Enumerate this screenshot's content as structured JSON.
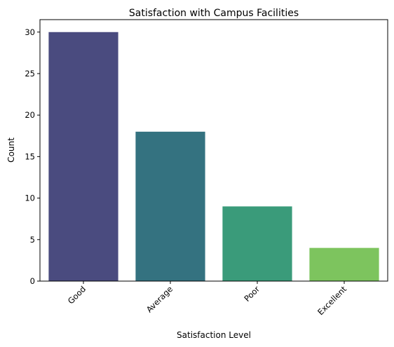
{
  "chart_data": {
    "type": "bar",
    "title": "Satisfaction with Campus Facilities",
    "xlabel": "Satisfaction Level",
    "ylabel": "Count",
    "categories": [
      "Good",
      "Average",
      "Poor",
      "Excellent"
    ],
    "values": [
      30,
      18,
      9,
      4
    ],
    "colors": [
      "#4a4b7f",
      "#347280",
      "#3a9b7a",
      "#7dc45e"
    ],
    "ylim": [
      0,
      31.5
    ],
    "yticks": [
      0,
      5,
      10,
      15,
      20,
      25,
      30
    ],
    "grid": false,
    "legend": "none"
  }
}
